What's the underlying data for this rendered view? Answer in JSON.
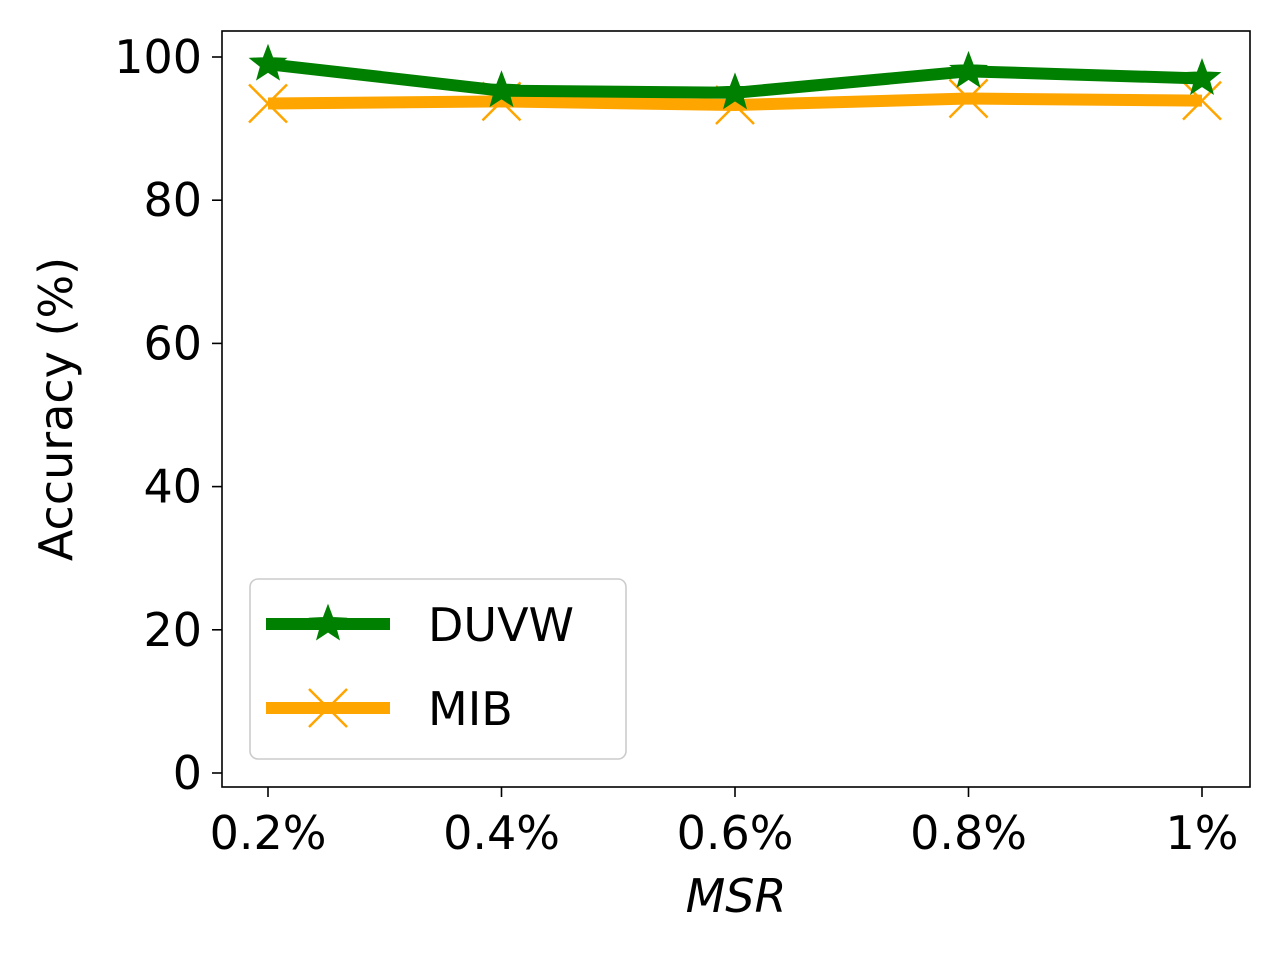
{
  "chart_data": {
    "type": "line",
    "categories": [
      "0.2%",
      "0.4%",
      "0.6%",
      "0.8%",
      "1%"
    ],
    "series": [
      {
        "name": "DUVW",
        "values": [
          99.0,
          95.3,
          95.0,
          98.0,
          97.0
        ],
        "color": "#008000",
        "marker": "star"
      },
      {
        "name": "MIB",
        "values": [
          93.5,
          93.8,
          93.3,
          94.2,
          93.9
        ],
        "color": "#FFA500",
        "marker": "x"
      }
    ],
    "title": "",
    "xlabel": "MSR",
    "ylabel": "Accuracy (%)",
    "ylim": [
      0,
      100
    ],
    "yticks": [
      "0",
      "20",
      "40",
      "60",
      "80",
      "100"
    ],
    "grid": false,
    "legend_position": "lower-left"
  }
}
